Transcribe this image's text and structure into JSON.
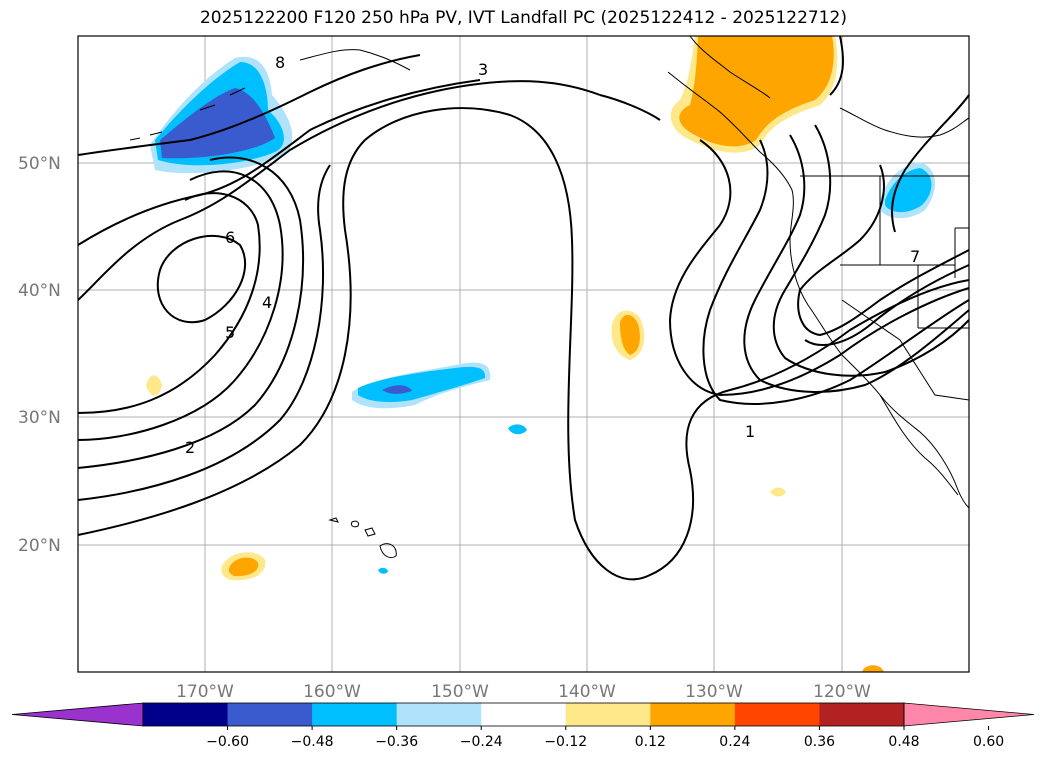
{
  "title": "2025122200 F120 250 hPa PV, IVT Landfall PC (2025122412 - 2025122712)",
  "map": {
    "lat_labels": [
      "50°N",
      "40°N",
      "30°N",
      "20°N"
    ],
    "lon_labels": [
      "170°W",
      "160°W",
      "150°W",
      "140°W",
      "130°W",
      "120°W"
    ],
    "contour_labels": [
      "1",
      "2",
      "3",
      "4",
      "5",
      "6",
      "7",
      "8"
    ]
  },
  "colorbar": {
    "colors": [
      "#9a32cd",
      "#00008b",
      "#3a5bcd",
      "#00bfff",
      "#afe3fb",
      "#ffffff",
      "#ffe88a",
      "#ffa500",
      "#ff4500",
      "#b22222",
      "#ff88aa"
    ],
    "ticks": [
      "−0.60",
      "−0.48",
      "−0.36",
      "−0.24",
      "−0.12",
      "0.12",
      "0.24",
      "0.36",
      "0.48",
      "0.60"
    ]
  }
}
